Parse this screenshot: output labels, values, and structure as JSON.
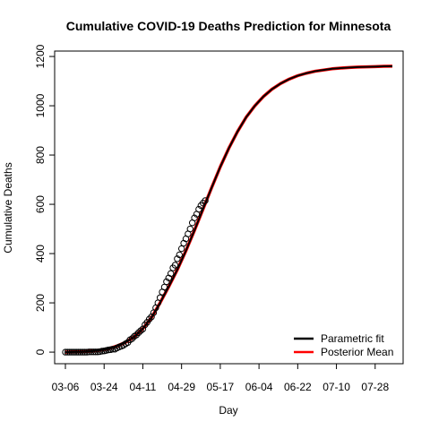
{
  "chart_data": {
    "type": "line",
    "title": "Cumulative COVID-19 Deaths Prediction for Minnesota",
    "xlabel": "Day",
    "ylabel": "Cumulative Deaths",
    "xlim": [
      -5,
      157
    ],
    "ylim": [
      -47,
      1222
    ],
    "xticks": [
      {
        "value": 0,
        "label": "03-06"
      },
      {
        "value": 18,
        "label": "03-24"
      },
      {
        "value": 36,
        "label": "04-11"
      },
      {
        "value": 54,
        "label": "04-29"
      },
      {
        "value": 72,
        "label": "05-17"
      },
      {
        "value": 90,
        "label": "06-04"
      },
      {
        "value": 108,
        "label": "06-22"
      },
      {
        "value": 126,
        "label": "07-10"
      },
      {
        "value": 144,
        "label": "07-28"
      }
    ],
    "yticks": [
      0,
      200,
      400,
      600,
      800,
      1000,
      1200
    ],
    "legend": "bottom-right",
    "observed": {
      "color": "#000000",
      "x": [
        0,
        1,
        2,
        3,
        4,
        5,
        6,
        7,
        8,
        9,
        10,
        11,
        12,
        13,
        14,
        15,
        16,
        17,
        18,
        19,
        20,
        21,
        22,
        23,
        24,
        25,
        26,
        27,
        28,
        29,
        30,
        31,
        32,
        33,
        34,
        35,
        36,
        37,
        38,
        39,
        40,
        41,
        42,
        43,
        44,
        45,
        46,
        47,
        48,
        49,
        50,
        51,
        52,
        53,
        54,
        55,
        56,
        57,
        58,
        59,
        60,
        61,
        62,
        63,
        64,
        65
      ],
      "values": [
        0,
        0,
        0,
        0,
        0,
        0,
        0,
        0,
        0,
        0,
        0,
        1,
        1,
        1,
        1,
        1,
        2,
        4,
        5,
        7,
        9,
        10,
        12,
        12,
        17,
        21,
        24,
        28,
        34,
        39,
        50,
        55,
        64,
        70,
        79,
        87,
        94,
        111,
        121,
        134,
        143,
        160,
        180,
        200,
        221,
        244,
        264,
        286,
        301,
        319,
        342,
        353,
        379,
        395,
        420,
        442,
        460,
        480,
        500,
        525,
        545,
        560,
        580,
        595,
        605,
        615
      ]
    },
    "x": [
      0,
      4,
      8,
      12,
      16,
      20,
      24,
      28,
      32,
      36,
      40,
      44,
      48,
      52,
      56,
      60,
      64,
      68,
      72,
      76,
      80,
      84,
      88,
      92,
      96,
      100,
      104,
      108,
      112,
      116,
      120,
      124,
      128,
      132,
      136,
      140,
      144,
      148,
      152
    ],
    "series": [
      {
        "name": "Posterior Mean",
        "color": "#ff0000",
        "values": [
          0,
          1,
          2,
          4,
          8,
          14,
          25,
          40,
          62,
          95,
          140,
          200,
          265,
          334,
          411,
          494,
          581,
          668,
          752,
          828,
          895,
          953,
          999,
          1037,
          1067,
          1090,
          1108,
          1122,
          1132,
          1140,
          1145,
          1150,
          1153,
          1155,
          1157,
          1158,
          1159,
          1160,
          1160.5
        ]
      },
      {
        "name": "Parametric fit",
        "color": "#000000",
        "values": [
          0,
          1,
          2,
          4,
          8,
          14,
          25,
          40,
          62,
          95,
          140,
          200,
          265,
          334,
          411,
          494,
          581,
          668,
          752,
          828,
          895,
          953,
          999,
          1037,
          1067,
          1090,
          1108,
          1122,
          1132,
          1140,
          1145,
          1150,
          1153,
          1155,
          1157,
          1158,
          1159,
          1160,
          1160.5
        ]
      }
    ]
  }
}
